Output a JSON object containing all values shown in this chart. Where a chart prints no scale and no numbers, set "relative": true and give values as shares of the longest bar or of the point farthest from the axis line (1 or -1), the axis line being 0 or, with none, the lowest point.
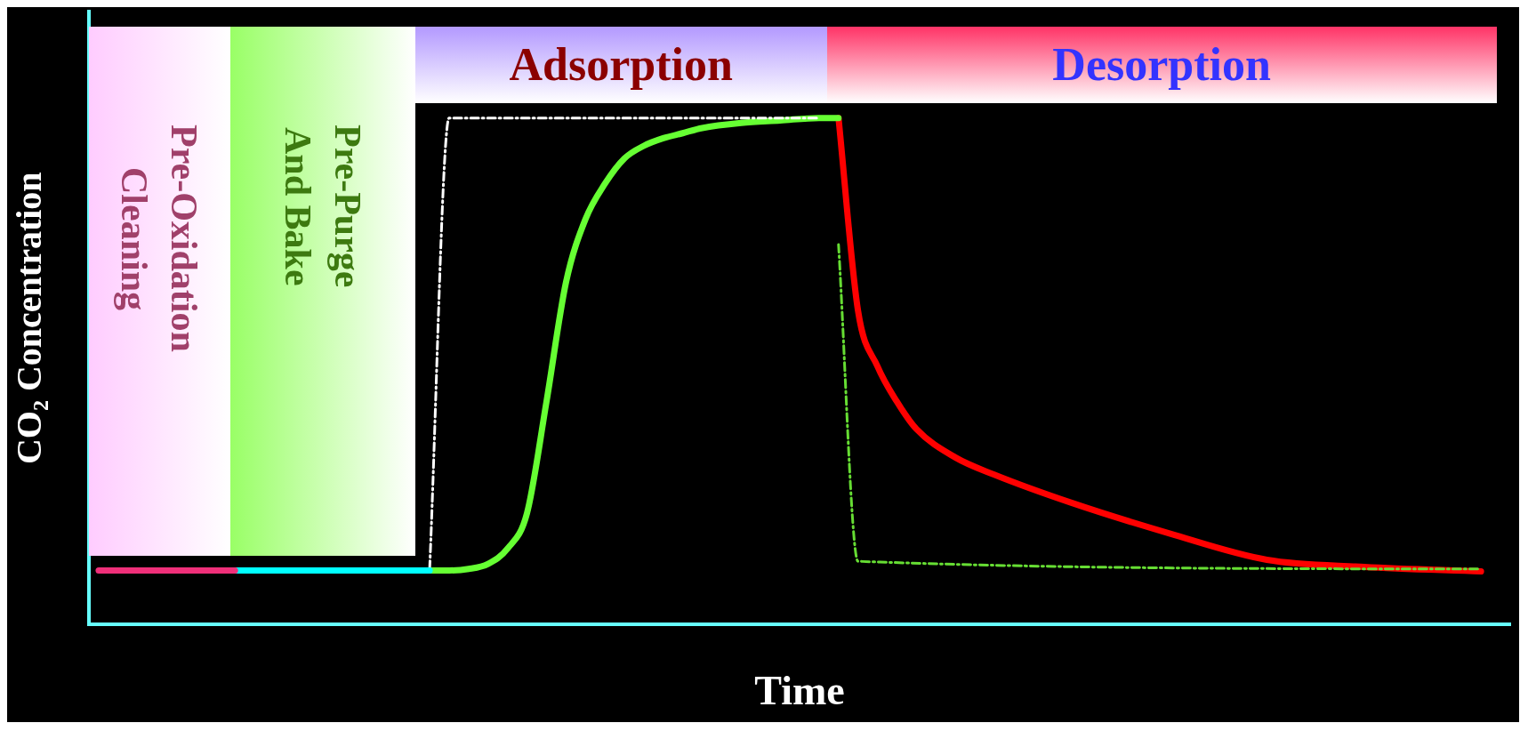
{
  "chart_data": {
    "type": "line",
    "relative": true,
    "xlabel": "Time",
    "ylabel": "CO₂ Concentration",
    "grid": false,
    "legend": false,
    "marker": "none",
    "annotations": [
      "Pre-Oxidation Cleaning",
      "Pre-Purge And Bake",
      "Adsorption",
      "Desorption"
    ],
    "categories": [
      null,
      null,
      null,
      null,
      null,
      null,
      null,
      null,
      null,
      null,
      null,
      null,
      null,
      null,
      null,
      null,
      null,
      null,
      null,
      null,
      null,
      null,
      null,
      null,
      null,
      null,
      null,
      null,
      null,
      null,
      null,
      null,
      null,
      null,
      null,
      null,
      null,
      null,
      null,
      null,
      null,
      null,
      null,
      null,
      null,
      null,
      null,
      null,
      null,
      null,
      null,
      null,
      null,
      null,
      null,
      null,
      null,
      null,
      null,
      null,
      null,
      null,
      null,
      null,
      null,
      null,
      null,
      null,
      null,
      null,
      null,
      null,
      null
    ],
    "series": [
      {
        "color": "#f0307a",
        "line_style": "solid",
        "values": [
          0.107,
          0.107,
          0.107,
          0.107,
          0.107,
          0.107,
          0.107,
          0.107,
          null,
          null,
          null,
          null,
          null,
          null,
          null,
          null,
          null,
          null,
          null,
          null,
          null,
          null,
          null,
          null,
          null,
          null,
          null,
          null,
          null,
          null,
          null,
          null,
          null,
          null,
          null,
          null,
          null,
          null,
          null,
          null,
          null,
          null,
          null,
          null,
          null,
          null,
          null,
          null,
          null,
          null,
          null,
          null,
          null,
          null,
          null,
          null,
          null,
          null,
          null,
          null,
          null,
          null,
          null,
          null,
          null,
          null,
          null,
          null,
          null,
          null,
          null,
          null,
          null
        ]
      },
      {
        "color": "#00ffff",
        "line_style": "solid",
        "values": [
          null,
          null,
          null,
          null,
          null,
          null,
          null,
          0.107,
          0.107,
          0.107,
          0.107,
          0.107,
          0.107,
          0.107,
          0.107,
          0.107,
          0.107,
          0.107,
          null,
          null,
          null,
          null,
          null,
          null,
          null,
          null,
          null,
          null,
          null,
          null,
          null,
          null,
          null,
          null,
          null,
          null,
          null,
          null,
          null,
          null,
          null,
          null,
          null,
          null,
          null,
          null,
          null,
          null,
          null,
          null,
          null,
          null,
          null,
          null,
          null,
          null,
          null,
          null,
          null,
          null,
          null,
          null,
          null,
          null,
          null,
          null,
          null,
          null,
          null,
          null,
          null,
          null,
          null
        ]
      },
      {
        "color": "#ffffff",
        "line_style": "dashed",
        "values": [
          null,
          null,
          null,
          null,
          null,
          null,
          null,
          null,
          null,
          null,
          null,
          null,
          null,
          null,
          null,
          null,
          null,
          0.11,
          1.0,
          null,
          null,
          null,
          null,
          null,
          null,
          null,
          null,
          null,
          null,
          null,
          null,
          null,
          null,
          null,
          null,
          null,
          null,
          1.0,
          null,
          null,
          null,
          null,
          null,
          null,
          null,
          null,
          null,
          null,
          null,
          null,
          null,
          null,
          null,
          null,
          null,
          null,
          null,
          null,
          null,
          null,
          null,
          null,
          null,
          null,
          null,
          null,
          null,
          null,
          null,
          null,
          null,
          null,
          null
        ]
      },
      {
        "color": "#66dd33",
        "line_style": "dashed",
        "values": [
          null,
          null,
          null,
          null,
          null,
          null,
          null,
          null,
          null,
          null,
          null,
          null,
          null,
          null,
          null,
          null,
          null,
          null,
          null,
          null,
          null,
          null,
          null,
          null,
          null,
          null,
          null,
          null,
          null,
          null,
          null,
          null,
          null,
          null,
          null,
          null,
          null,
          null,
          0.75,
          0.125,
          null,
          null,
          null,
          null,
          null,
          null,
          null,
          null,
          null,
          null,
          null,
          null,
          null,
          null,
          null,
          null,
          null,
          null,
          null,
          null,
          null,
          null,
          null,
          null,
          null,
          null,
          null,
          null,
          null,
          null,
          null,
          0.11,
          null
        ]
      },
      {
        "color": "#66ff33",
        "line_style": "solid",
        "values": [
          null,
          null,
          null,
          null,
          null,
          null,
          null,
          null,
          null,
          null,
          null,
          null,
          null,
          null,
          null,
          null,
          null,
          0.107,
          0.107,
          0.11,
          0.12,
          0.15,
          0.22,
          0.44,
          0.675,
          0.8,
          0.87,
          0.92,
          0.945,
          0.96,
          0.97,
          0.98,
          null,
          0.99,
          null,
          0.995,
          null,
          1.0,
          1.0,
          null,
          null,
          null,
          null,
          null,
          null,
          null,
          null,
          null,
          null,
          null,
          null,
          null,
          null,
          null,
          null,
          null,
          null,
          null,
          null,
          null,
          null,
          null,
          null,
          null,
          null,
          null,
          null,
          null,
          null,
          null,
          null,
          null,
          null
        ]
      },
      {
        "color": "#ff0000",
        "line_style": "solid",
        "values": [
          null,
          null,
          null,
          null,
          null,
          null,
          null,
          null,
          null,
          null,
          null,
          null,
          null,
          null,
          null,
          null,
          null,
          null,
          null,
          null,
          null,
          null,
          null,
          null,
          null,
          null,
          null,
          null,
          null,
          null,
          null,
          null,
          null,
          null,
          null,
          null,
          null,
          null,
          1.0,
          0.62,
          0.51,
          0.44,
          0.386,
          null,
          0.33,
          null,
          0.296,
          null,
          null,
          null,
          0.24,
          null,
          null,
          null,
          null,
          0.18,
          null,
          null,
          null,
          null,
          0.128,
          null,
          null,
          null,
          null,
          0.114,
          null,
          null,
          null,
          null,
          null,
          0.105,
          null
        ]
      }
    ]
  }
}
